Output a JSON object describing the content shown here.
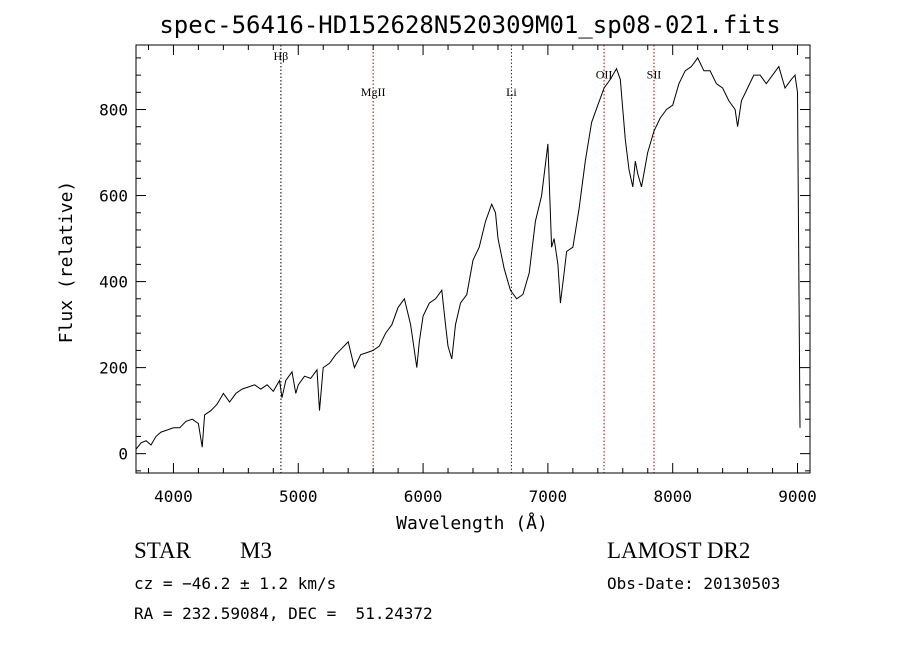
{
  "chart_data": {
    "type": "line",
    "title": "spec-56416-HD152628N520309M01_sp08-021.fits",
    "xlabel": "Wavelength (Å)",
    "ylabel": "Flux (relative)",
    "xlim": [
      3700,
      9100
    ],
    "ylim": [
      -45,
      950
    ],
    "xticks": [
      4000,
      5000,
      6000,
      7000,
      8000,
      9000
    ],
    "yticks": [
      0,
      200,
      400,
      600,
      800
    ],
    "grid": false,
    "series": [
      {
        "color": "#000000",
        "x": [
          3700,
          3740,
          3780,
          3820,
          3860,
          3900,
          3950,
          4000,
          4050,
          4100,
          4150,
          4200,
          4230,
          4250,
          4300,
          4350,
          4400,
          4450,
          4500,
          4550,
          4600,
          4650,
          4700,
          4750,
          4800,
          4850,
          4870,
          4900,
          4950,
          4980,
          5000,
          5050,
          5100,
          5150,
          5170,
          5200,
          5250,
          5300,
          5350,
          5400,
          5450,
          5500,
          5550,
          5600,
          5650,
          5700,
          5750,
          5800,
          5850,
          5900,
          5920,
          5950,
          5970,
          6000,
          6050,
          6100,
          6150,
          6180,
          6200,
          6230,
          6260,
          6300,
          6350,
          6400,
          6450,
          6500,
          6550,
          6580,
          6600,
          6650,
          6700,
          6750,
          6800,
          6850,
          6900,
          6950,
          7000,
          7030,
          7050,
          7080,
          7100,
          7130,
          7150,
          7200,
          7250,
          7300,
          7350,
          7400,
          7450,
          7500,
          7530,
          7550,
          7580,
          7600,
          7620,
          7650,
          7680,
          7700,
          7720,
          7750,
          7800,
          7850,
          7900,
          7950,
          8000,
          8050,
          8100,
          8150,
          8200,
          8250,
          8300,
          8350,
          8400,
          8450,
          8500,
          8520,
          8550,
          8600,
          8650,
          8700,
          8750,
          8800,
          8850,
          8900,
          8950,
          8980,
          9000,
          9020
        ],
        "y": [
          10,
          25,
          30,
          20,
          40,
          50,
          55,
          60,
          60,
          75,
          80,
          70,
          15,
          90,
          100,
          115,
          140,
          120,
          140,
          150,
          155,
          160,
          150,
          160,
          145,
          170,
          130,
          170,
          190,
          140,
          160,
          180,
          175,
          195,
          100,
          200,
          210,
          230,
          245,
          260,
          200,
          230,
          235,
          240,
          250,
          280,
          300,
          340,
          360,
          300,
          260,
          200,
          260,
          320,
          350,
          360,
          380,
          300,
          250,
          220,
          300,
          350,
          370,
          450,
          480,
          540,
          580,
          560,
          500,
          430,
          380,
          360,
          370,
          420,
          540,
          600,
          720,
          480,
          500,
          440,
          350,
          420,
          470,
          480,
          570,
          680,
          770,
          810,
          850,
          870,
          885,
          895,
          870,
          800,
          730,
          660,
          620,
          680,
          650,
          620,
          700,
          750,
          780,
          800,
          810,
          860,
          890,
          900,
          920,
          890,
          890,
          860,
          850,
          820,
          800,
          760,
          820,
          850,
          880,
          880,
          860,
          880,
          900,
          850,
          870,
          880,
          840,
          60
        ]
      }
    ],
    "annotations": [
      {
        "label": "Hβ",
        "x": 4861,
        "label_y": 915
      },
      {
        "label": "MgII",
        "x": 5600,
        "label_y": 832
      },
      {
        "label": "Li",
        "x": 6708,
        "label_y": 832
      },
      {
        "label": "OII",
        "x": 7450,
        "label_y": 872
      },
      {
        "label": "SII",
        "x": 7850,
        "label_y": 872
      }
    ]
  },
  "info": {
    "object_class": "STAR",
    "subclass": "M3",
    "survey": "LAMOST DR2",
    "cz": "cz = −46.2 ± 1.2 km/s",
    "obs_date": "Obs-Date: 20130503",
    "coords": "RA = 232.59084, DEC =  51.24372"
  }
}
